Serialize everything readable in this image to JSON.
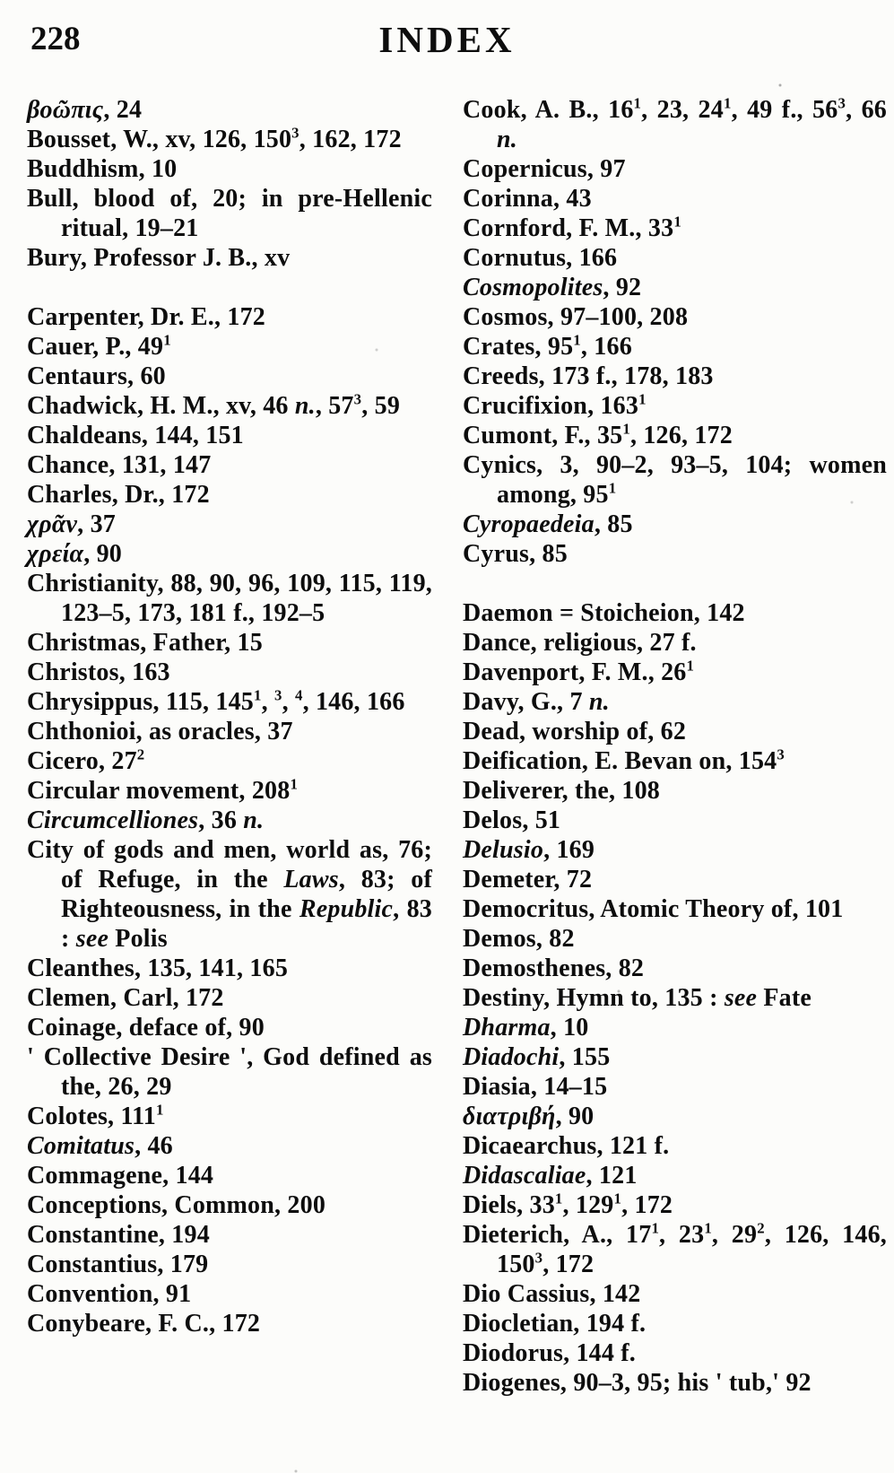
{
  "page": {
    "number": "228",
    "title": "INDEX"
  },
  "columns": {
    "left": [
      {
        "seg": [
          {
            "t": "βοῶπις",
            "i": true
          },
          {
            "t": ", 24"
          }
        ]
      },
      {
        "seg": [
          {
            "t": "Bousset, W., xv, 126, 150"
          },
          {
            "t": "3",
            "sup": true
          },
          {
            "t": ", 162, 172"
          }
        ]
      },
      {
        "seg": [
          {
            "t": "Buddhism, 10"
          }
        ]
      },
      {
        "seg": [
          {
            "t": "Bull, blood of, 20; in pre-Hellenic ritual, 19–21"
          }
        ]
      },
      {
        "seg": [
          {
            "t": "Bury, Professor J. B., xv"
          }
        ]
      },
      {
        "gap": true,
        "seg": [
          {
            "t": "Carpenter, Dr. E., 172"
          }
        ]
      },
      {
        "seg": [
          {
            "t": "Cauer, P., 49"
          },
          {
            "t": "1",
            "sup": true
          }
        ]
      },
      {
        "seg": [
          {
            "t": "Centaurs, 60"
          }
        ]
      },
      {
        "seg": [
          {
            "t": "Chadwick, H. M., xv, 46 "
          },
          {
            "t": "n.",
            "i": true
          },
          {
            "t": ", 57"
          },
          {
            "t": "3",
            "sup": true
          },
          {
            "t": ", 59"
          }
        ]
      },
      {
        "seg": [
          {
            "t": "Chaldeans, 144, 151"
          }
        ]
      },
      {
        "seg": [
          {
            "t": "Chance, 131, 147"
          }
        ]
      },
      {
        "seg": [
          {
            "t": "Charles, Dr., 172"
          }
        ]
      },
      {
        "seg": [
          {
            "t": "χρᾶν",
            "i": true
          },
          {
            "t": ", 37"
          }
        ]
      },
      {
        "seg": [
          {
            "t": "χρεία",
            "i": true
          },
          {
            "t": ", 90"
          }
        ]
      },
      {
        "seg": [
          {
            "t": "Christianity, 88, 90, 96, 109, 115, 119, 123–5, 173, 181 f., 192–5"
          }
        ]
      },
      {
        "seg": [
          {
            "t": "Christmas, Father, 15"
          }
        ]
      },
      {
        "seg": [
          {
            "t": "Christos, 163"
          }
        ]
      },
      {
        "seg": [
          {
            "t": "Chrysippus, 115, 145"
          },
          {
            "t": "1",
            "sup": true
          },
          {
            "t": ", "
          },
          {
            "t": "3",
            "sup": true
          },
          {
            "t": ", "
          },
          {
            "t": "4",
            "sup": true
          },
          {
            "t": ", 146, 166"
          }
        ]
      },
      {
        "seg": [
          {
            "t": "Chthonioi, as oracles, 37"
          }
        ]
      },
      {
        "seg": [
          {
            "t": "Cicero, 27"
          },
          {
            "t": "2",
            "sup": true
          }
        ]
      },
      {
        "seg": [
          {
            "t": "Circular movement, 208"
          },
          {
            "t": "1",
            "sup": true
          }
        ]
      },
      {
        "seg": [
          {
            "t": "Circumcelliones",
            "i": true
          },
          {
            "t": ", 36 "
          },
          {
            "t": "n.",
            "i": true
          }
        ]
      },
      {
        "seg": [
          {
            "t": "City of gods and men, world as, 76; of Refuge, in the "
          },
          {
            "t": "Laws",
            "i": true
          },
          {
            "t": ", 83; of Righteousness, in the "
          },
          {
            "t": "Republic",
            "i": true
          },
          {
            "t": ", 83 : "
          },
          {
            "t": "see",
            "i": true
          },
          {
            "t": " Polis"
          }
        ]
      },
      {
        "seg": [
          {
            "t": "Cleanthes, 135, 141, 165"
          }
        ]
      },
      {
        "seg": [
          {
            "t": "Clemen, Carl, 172"
          }
        ]
      },
      {
        "seg": [
          {
            "t": "Coinage, deface of, 90"
          }
        ]
      },
      {
        "seg": [
          {
            "t": "' Collective Desire ', God defined as the, 26, 29"
          }
        ]
      },
      {
        "seg": [
          {
            "t": "Colotes, 111"
          },
          {
            "t": "1",
            "sup": true
          }
        ]
      },
      {
        "seg": [
          {
            "t": "Comitatus",
            "i": true
          },
          {
            "t": ", 46"
          }
        ]
      },
      {
        "seg": [
          {
            "t": "Commagene, 144"
          }
        ]
      },
      {
        "seg": [
          {
            "t": "Conceptions, Common, 200"
          }
        ]
      },
      {
        "seg": [
          {
            "t": "Constantine, 194"
          }
        ]
      },
      {
        "seg": [
          {
            "t": "Constantius, 179"
          }
        ]
      },
      {
        "seg": [
          {
            "t": "Convention, 91"
          }
        ]
      },
      {
        "seg": [
          {
            "t": "Conybeare, F. C., 172"
          }
        ]
      }
    ],
    "right": [
      {
        "seg": [
          {
            "t": "Cook, A. B., 16"
          },
          {
            "t": "1",
            "sup": true
          },
          {
            "t": ", 23, 24"
          },
          {
            "t": "1",
            "sup": true
          },
          {
            "t": ", 49 f., 56"
          },
          {
            "t": "3",
            "sup": true
          },
          {
            "t": ", 66 "
          },
          {
            "t": "n.",
            "i": true
          }
        ]
      },
      {
        "seg": [
          {
            "t": "Copernicus, 97"
          }
        ]
      },
      {
        "seg": [
          {
            "t": "Corinna, 43"
          }
        ]
      },
      {
        "seg": [
          {
            "t": "Cornford, F. M., 33"
          },
          {
            "t": "1",
            "sup": true
          }
        ]
      },
      {
        "seg": [
          {
            "t": "Cornutus, 166"
          }
        ]
      },
      {
        "seg": [
          {
            "t": "Cosmopolites",
            "i": true
          },
          {
            "t": ", 92"
          }
        ]
      },
      {
        "seg": [
          {
            "t": "Cosmos, 97–100, 208"
          }
        ]
      },
      {
        "seg": [
          {
            "t": "Crates, 95"
          },
          {
            "t": "1",
            "sup": true
          },
          {
            "t": ", 166"
          }
        ]
      },
      {
        "seg": [
          {
            "t": "Creeds, 173 f., 178, 183"
          }
        ]
      },
      {
        "seg": [
          {
            "t": "Crucifixion, 163"
          },
          {
            "t": "1",
            "sup": true
          }
        ]
      },
      {
        "seg": [
          {
            "t": "Cumont, F., 35"
          },
          {
            "t": "1",
            "sup": true
          },
          {
            "t": ", 126, 172"
          }
        ]
      },
      {
        "seg": [
          {
            "t": "Cynics, 3, 90–2, 93–5, 104; women among, 95"
          },
          {
            "t": "1",
            "sup": true
          }
        ]
      },
      {
        "seg": [
          {
            "t": "Cyropaedeia",
            "i": true
          },
          {
            "t": ", 85"
          }
        ]
      },
      {
        "seg": [
          {
            "t": "Cyrus, 85"
          }
        ]
      },
      {
        "gap": true,
        "seg": [
          {
            "t": "Daemon = Stoicheion, 142"
          }
        ]
      },
      {
        "seg": [
          {
            "t": "Dance, religious, 27 f."
          }
        ]
      },
      {
        "seg": [
          {
            "t": "Davenport, F. M., 26"
          },
          {
            "t": "1",
            "sup": true
          }
        ]
      },
      {
        "seg": [
          {
            "t": "Davy, G., 7 "
          },
          {
            "t": "n.",
            "i": true
          }
        ]
      },
      {
        "seg": [
          {
            "t": "Dead, worship of, 62"
          }
        ]
      },
      {
        "seg": [
          {
            "t": "Deification, E. Bevan on, 154"
          },
          {
            "t": "3",
            "sup": true
          }
        ]
      },
      {
        "seg": [
          {
            "t": "Deliverer, the, 108"
          }
        ]
      },
      {
        "seg": [
          {
            "t": "Delos, 51"
          }
        ]
      },
      {
        "seg": [
          {
            "t": "Delusio",
            "i": true
          },
          {
            "t": ", 169"
          }
        ]
      },
      {
        "seg": [
          {
            "t": "Demeter, 72"
          }
        ]
      },
      {
        "seg": [
          {
            "t": "Democritus, Atomic Theory of, 101"
          }
        ]
      },
      {
        "seg": [
          {
            "t": "Demos, 82"
          }
        ]
      },
      {
        "seg": [
          {
            "t": "Demosthenes, 82"
          }
        ]
      },
      {
        "seg": [
          {
            "t": "Destiny, Hymn to, 135 : "
          },
          {
            "t": "see",
            "i": true
          },
          {
            "t": " Fate"
          }
        ]
      },
      {
        "seg": [
          {
            "t": "Dharma",
            "i": true
          },
          {
            "t": ", 10"
          }
        ]
      },
      {
        "seg": [
          {
            "t": "Diadochi",
            "i": true
          },
          {
            "t": ", 155"
          }
        ]
      },
      {
        "seg": [
          {
            "t": "Diasia, 14–15"
          }
        ]
      },
      {
        "seg": [
          {
            "t": "διατριβή",
            "i": true
          },
          {
            "t": ", 90"
          }
        ]
      },
      {
        "seg": [
          {
            "t": "Dicaearchus, 121 f."
          }
        ]
      },
      {
        "seg": [
          {
            "t": "Didascaliae",
            "i": true
          },
          {
            "t": ", 121"
          }
        ]
      },
      {
        "seg": [
          {
            "t": "Diels, 33"
          },
          {
            "t": "1",
            "sup": true
          },
          {
            "t": ", 129"
          },
          {
            "t": "1",
            "sup": true
          },
          {
            "t": ", 172"
          }
        ]
      },
      {
        "seg": [
          {
            "t": "Dieterich, A., 17"
          },
          {
            "t": "1",
            "sup": true
          },
          {
            "t": ", 23"
          },
          {
            "t": "1",
            "sup": true
          },
          {
            "t": ", 29"
          },
          {
            "t": "2",
            "sup": true
          },
          {
            "t": ", 126, 146, 150"
          },
          {
            "t": "3",
            "sup": true
          },
          {
            "t": ", 172"
          }
        ]
      },
      {
        "seg": [
          {
            "t": "Dio Cassius, 142"
          }
        ]
      },
      {
        "seg": [
          {
            "t": "Diocletian, 194 f."
          }
        ]
      },
      {
        "seg": [
          {
            "t": "Diodorus, 144 f."
          }
        ]
      },
      {
        "seg": [
          {
            "t": "Diogenes, 90–3, 95; his ' tub,' 92"
          }
        ]
      }
    ]
  }
}
